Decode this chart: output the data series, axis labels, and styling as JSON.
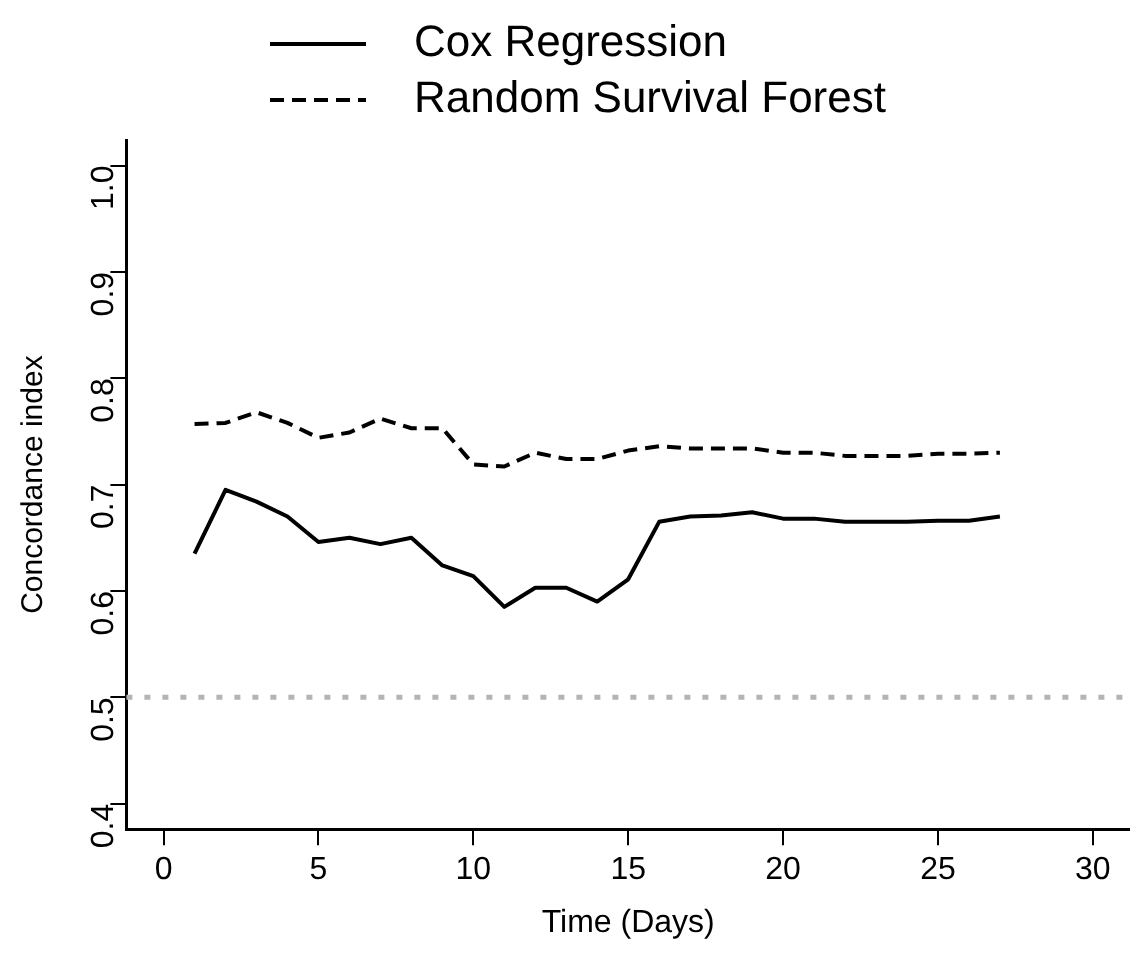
{
  "chart_data": {
    "type": "line",
    "xlabel": "Time (Days)",
    "ylabel": "Concordance index",
    "x": [
      1,
      2,
      3,
      4,
      5,
      6,
      7,
      8,
      9,
      10,
      11,
      12,
      13,
      14,
      15,
      16,
      17,
      18,
      19,
      20,
      21,
      22,
      23,
      24,
      25,
      26,
      27
    ],
    "series": [
      {
        "name": "Cox Regression",
        "color": "#000000",
        "line_style": "solid",
        "values": [
          0.635,
          0.695,
          0.684,
          0.67,
          0.646,
          0.65,
          0.644,
          0.65,
          0.624,
          0.614,
          0.585,
          0.603,
          0.603,
          0.59,
          0.611,
          0.665,
          0.67,
          0.671,
          0.674,
          0.668,
          0.668,
          0.665,
          0.665,
          0.665,
          0.666,
          0.666,
          0.67
        ]
      },
      {
        "name": "Random Survival Forest",
        "color": "#000000",
        "line_style": "dashed",
        "values": [
          0.757,
          0.758,
          0.768,
          0.758,
          0.744,
          0.749,
          0.762,
          0.753,
          0.753,
          0.719,
          0.717,
          0.73,
          0.724,
          0.724,
          0.732,
          0.736,
          0.734,
          0.734,
          0.734,
          0.73,
          0.73,
          0.727,
          0.727,
          0.727,
          0.729,
          0.729,
          0.73
        ]
      }
    ],
    "xlim": [
      -1.2,
      31.2
    ],
    "xticks": [
      0,
      5,
      10,
      15,
      20,
      25,
      30
    ],
    "ylim": [
      0.376,
      1.024
    ],
    "yticks": [
      0.4,
      0.5,
      0.6,
      0.7,
      0.8,
      0.9,
      {
        "value": 1,
        "label": "1.0"
      }
    ],
    "ref_lines": [
      {
        "axis": "y",
        "value": 0.5,
        "color": "#b4b4b4",
        "line_style": "dotted"
      }
    ],
    "grid": false,
    "legend": "top",
    "marker": "none"
  }
}
